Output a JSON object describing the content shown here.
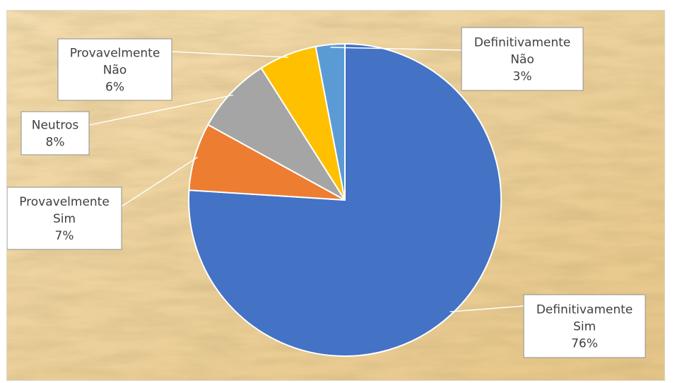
{
  "chart_data": {
    "type": "pie",
    "title": "",
    "background": "parchment texture",
    "start_angle_deg": 0,
    "direction": "clockwise",
    "slices": [
      {
        "label_lines": [
          "Definitivamente",
          "Sim"
        ],
        "percent_label": "76%",
        "value": 76,
        "color": "#4472C4"
      },
      {
        "label_lines": [
          "Provavelmente",
          "Sim"
        ],
        "percent_label": "7%",
        "value": 7,
        "color": "#ED7D31"
      },
      {
        "label_lines": [
          "Neutros"
        ],
        "percent_label": "8%",
        "value": 8,
        "color": "#A5A5A5"
      },
      {
        "label_lines": [
          "Provavelmente",
          "Não"
        ],
        "percent_label": "6%",
        "value": 6,
        "color": "#FFC000"
      },
      {
        "label_lines": [
          "Definitivamente",
          "Não"
        ],
        "percent_label": "3%",
        "value": 3,
        "color": "#5B9BD5"
      }
    ]
  }
}
